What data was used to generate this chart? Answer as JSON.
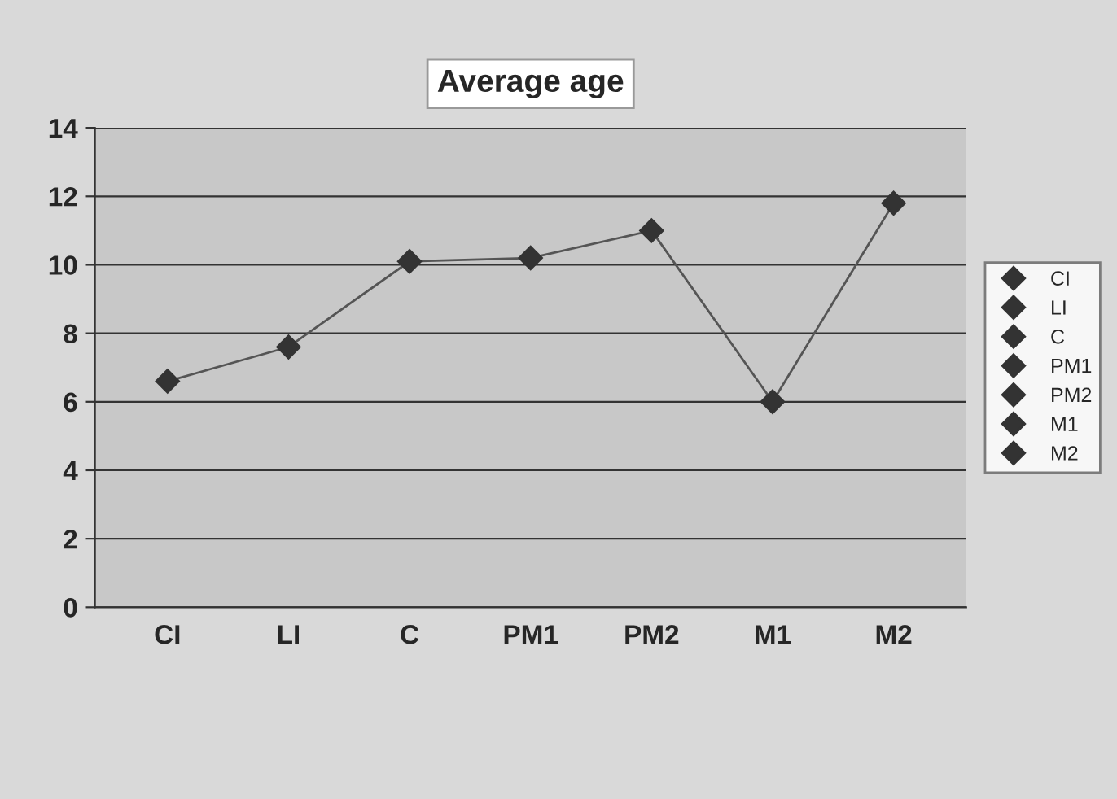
{
  "chart_data": {
    "type": "line",
    "title": "Average age",
    "categories": [
      "CI",
      "LI",
      "C",
      "PM1",
      "PM2",
      "M1",
      "M2"
    ],
    "series": [
      {
        "color": "#555555",
        "marker": "none",
        "values": [
          6.6,
          7.6,
          10.1,
          10.2,
          11.0,
          6.0,
          11.8
        ]
      },
      {
        "name": "CI",
        "type": "scatter",
        "color": "#333333",
        "values": [
          6.6,
          null,
          null,
          null,
          null,
          null,
          null
        ]
      },
      {
        "name": "LI",
        "type": "scatter",
        "color": "#333333",
        "values": [
          null,
          7.6,
          null,
          null,
          null,
          null,
          null
        ]
      },
      {
        "name": "C",
        "type": "scatter",
        "color": "#333333",
        "values": [
          null,
          null,
          10.1,
          null,
          null,
          null,
          null
        ]
      },
      {
        "name": "PM1",
        "type": "scatter",
        "color": "#333333",
        "values": [
          null,
          null,
          null,
          10.2,
          null,
          null,
          null
        ]
      },
      {
        "name": "PM2",
        "type": "scatter",
        "color": "#333333",
        "values": [
          null,
          null,
          null,
          null,
          11.0,
          null,
          null
        ]
      },
      {
        "name": "M1",
        "type": "scatter",
        "color": "#333333",
        "values": [
          null,
          null,
          null,
          null,
          null,
          6.0,
          null
        ]
      },
      {
        "name": "M2",
        "type": "scatter",
        "color": "#333333",
        "values": [
          null,
          null,
          null,
          null,
          null,
          null,
          11.8
        ]
      }
    ],
    "ylim": [
      0,
      14
    ],
    "yticks": [
      0,
      2,
      4,
      6,
      8,
      10,
      12,
      14
    ],
    "grid": "y",
    "legend": "right",
    "marker": "diamond",
    "line_style": "solid"
  }
}
